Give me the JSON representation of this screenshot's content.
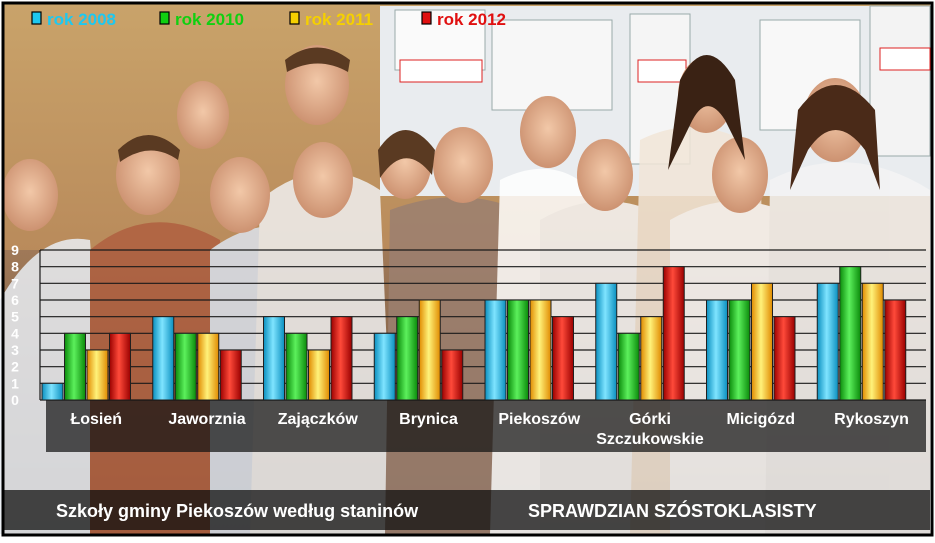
{
  "legend": [
    {
      "label": "rok 2008",
      "color": "#1ec8f0"
    },
    {
      "label": "rok 2010",
      "color": "#10d010"
    },
    {
      "label": "rok 2011",
      "color": "#f5d000"
    },
    {
      "label": "rok 2012",
      "color": "#e01010"
    }
  ],
  "caption": {
    "left": "Szkoły gminy Piekoszów  według staninów",
    "right": "SPRAWDZIAN SZÓSTOKLASISTY"
  },
  "background": "photo of a school class standing in front of a classroom board",
  "colors": {
    "frame": "#000000",
    "bar_stroke": "#202020",
    "label_band": "rgba(20,20,20,0.72)"
  },
  "chart_data": {
    "type": "bar",
    "categories": [
      "Łosień",
      "Jaworznia",
      "Zajączków",
      "Brynica",
      "Piekoszów",
      "Górki Szczukowskie",
      "Micigózd",
      "Rykoszyn"
    ],
    "series": [
      {
        "name": "rok 2008",
        "color": "#1ec8f0",
        "values": [
          1,
          5,
          5,
          4,
          6,
          7,
          6,
          7
        ]
      },
      {
        "name": "rok 2010",
        "color": "#10d010",
        "values": [
          4,
          4,
          4,
          5,
          6,
          4,
          6,
          8
        ]
      },
      {
        "name": "rok 2011",
        "color": "#f5d000",
        "values": [
          3,
          4,
          3,
          6,
          6,
          5,
          7,
          7
        ]
      },
      {
        "name": "rok 2012",
        "color": "#e01010",
        "values": [
          4,
          3,
          5,
          3,
          5,
          8,
          5,
          6
        ]
      }
    ],
    "yticks": [
      "0",
      "1",
      "2",
      "3",
      "4",
      "5",
      "6",
      "7",
      "8",
      "9"
    ],
    "ylim": [
      0,
      9
    ],
    "grid": true,
    "legend_position": "top-left"
  }
}
